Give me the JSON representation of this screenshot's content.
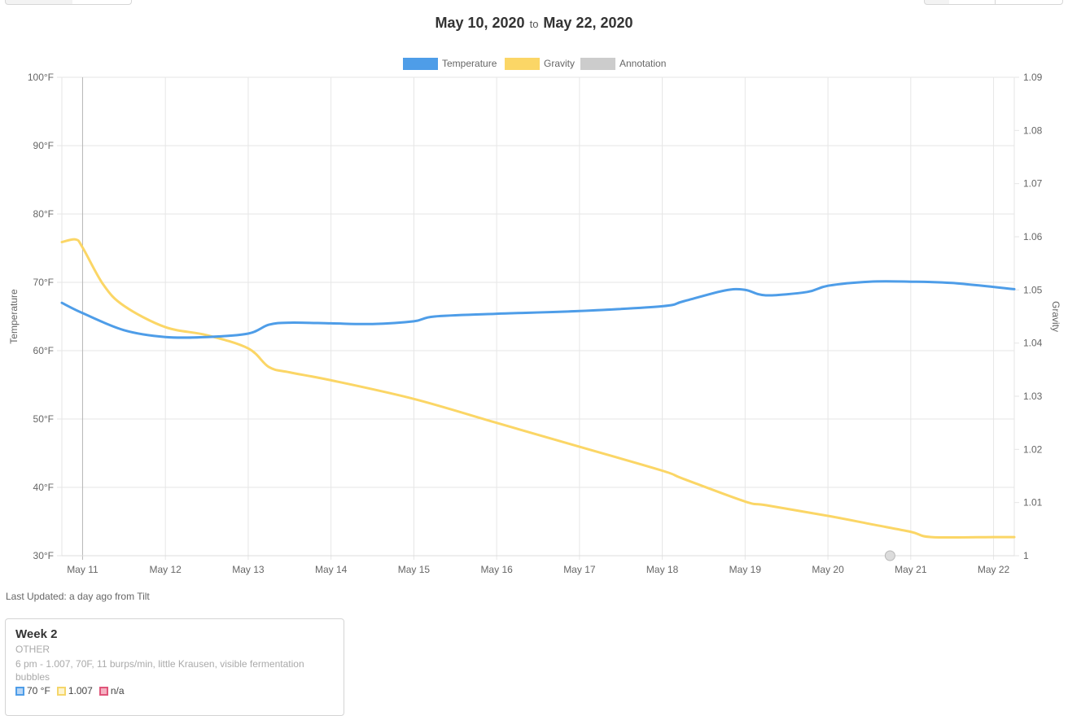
{
  "date_range": {
    "start": "May 10, 2020",
    "connector": "to",
    "end": "May 22, 2020"
  },
  "chart_data": {
    "type": "line",
    "legend": [
      {
        "name": "Temperature",
        "color": "#4e9de8"
      },
      {
        "name": "Gravity",
        "color": "#fbd666"
      },
      {
        "name": "Annotation",
        "color": "#cccccc"
      }
    ],
    "legend_position": "top-center",
    "grid": true,
    "x_ticks": [
      "May 11",
      "May 12",
      "May 13",
      "May 14",
      "May 15",
      "May 16",
      "May 17",
      "May 18",
      "May 19",
      "May 20",
      "May 21",
      "May 22"
    ],
    "xlim": [
      "May 10, 2020 18:00",
      "May 22, 2020 06:00"
    ],
    "y_left": {
      "label": "Temperature",
      "ticks": [
        "100°F",
        "90°F",
        "80°F",
        "70°F",
        "60°F",
        "50°F",
        "40°F",
        "30°F"
      ],
      "range": [
        30,
        100
      ]
    },
    "y_right": {
      "label": "Gravity",
      "ticks": [
        "1.09",
        "1.08",
        "1.07",
        "1.06",
        "1.05",
        "1.04",
        "1.03",
        "1.02",
        "1.01",
        "1"
      ],
      "range": [
        1.0,
        1.09
      ]
    },
    "series": [
      {
        "name": "Temperature",
        "color": "#4e9de8",
        "points": [
          [
            "May 10 18:00",
            67.0
          ],
          [
            "May 11 00:00",
            65.5
          ],
          [
            "May 11 12:00",
            63.0
          ],
          [
            "May 12 00:00",
            62.0
          ],
          [
            "May 12 12:00",
            62.0
          ],
          [
            "May 13 00:00",
            62.5
          ],
          [
            "May 13 06:00",
            63.8
          ],
          [
            "May 13 12:00",
            64.1
          ],
          [
            "May 14 00:00",
            64.0
          ],
          [
            "May 14 12:00",
            63.9
          ],
          [
            "May 15 00:00",
            64.3
          ],
          [
            "May 15 06:00",
            65.0
          ],
          [
            "May 16 00:00",
            65.4
          ],
          [
            "May 17 00:00",
            65.8
          ],
          [
            "May 18 00:00",
            66.5
          ],
          [
            "May 18 06:00",
            67.2
          ],
          [
            "May 18 18:00",
            68.8
          ],
          [
            "May 19 00:00",
            68.9
          ],
          [
            "May 19 06:00",
            68.1
          ],
          [
            "May 19 18:00",
            68.6
          ],
          [
            "May 20 00:00",
            69.5
          ],
          [
            "May 20 12:00",
            70.1
          ],
          [
            "May 21 00:00",
            70.1
          ],
          [
            "May 21 12:00",
            69.9
          ],
          [
            "May 22 06:00",
            69.0
          ]
        ]
      },
      {
        "name": "Gravity",
        "color": "#fbd666",
        "points": [
          [
            "May 10 18:00",
            1.059
          ],
          [
            "May 10 22:00",
            1.0595
          ],
          [
            "May 11 00:00",
            1.058
          ],
          [
            "May 11 06:00",
            1.051
          ],
          [
            "May 11 12:00",
            1.047
          ],
          [
            "May 12 00:00",
            1.043
          ],
          [
            "May 12 12:00",
            1.0415
          ],
          [
            "May 13 00:00",
            1.039
          ],
          [
            "May 13 06:00",
            1.0355
          ],
          [
            "May 13 12:00",
            1.0345
          ],
          [
            "May 14 00:00",
            1.033
          ],
          [
            "May 15 00:00",
            1.0295
          ],
          [
            "May 16 00:00",
            1.025
          ],
          [
            "May 17 00:00",
            1.0205
          ],
          [
            "May 18 00:00",
            1.016
          ],
          [
            "May 18 06:00",
            1.0145
          ],
          [
            "May 19 00:00",
            1.0102
          ],
          [
            "May 19 06:00",
            1.0095
          ],
          [
            "May 20 00:00",
            1.0075
          ],
          [
            "May 20 12:00",
            1.006
          ],
          [
            "May 21 00:00",
            1.0045
          ],
          [
            "May 21 06:00",
            1.0035
          ],
          [
            "May 22 00:00",
            1.0035
          ],
          [
            "May 22 06:00",
            1.0035
          ]
        ]
      }
    ],
    "annotations": [
      {
        "x": "May 20 18:00",
        "y": 1.0
      }
    ]
  },
  "footer": {
    "last_updated": "Last Updated: a day ago from Tilt"
  },
  "card": {
    "title": "Week 2",
    "category": "OTHER",
    "note": "6 pm - 1.007, 70F, 11 burps/min, little Krausen, visible fermentation bubbles",
    "temperature": "70 °F",
    "gravity": "1.007",
    "annotation": "n/a"
  }
}
